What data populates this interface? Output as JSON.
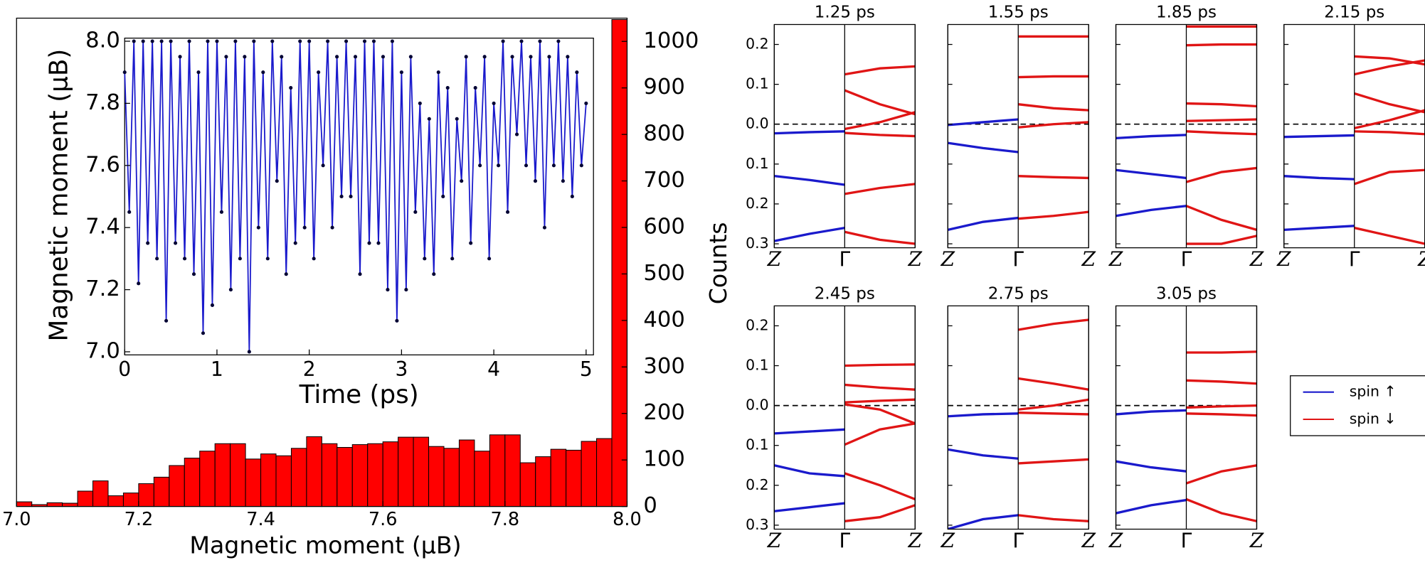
{
  "chart_data": [
    {
      "type": "histogram",
      "xlabel": "Magnetic moment (μB)",
      "ylabel": "Counts",
      "color": "#ff0000",
      "edge_color": "#000000",
      "bins": [
        7.0,
        7.025,
        7.05,
        7.075,
        7.1,
        7.125,
        7.15,
        7.175,
        7.2,
        7.225,
        7.25,
        7.275,
        7.3,
        7.325,
        7.35,
        7.375,
        7.4,
        7.425,
        7.45,
        7.475,
        7.5,
        7.525,
        7.55,
        7.575,
        7.6,
        7.625,
        7.65,
        7.675,
        7.7,
        7.725,
        7.75,
        7.775,
        7.8,
        7.825,
        7.85,
        7.875,
        7.9,
        7.925,
        7.95,
        7.975,
        8.0
      ],
      "values": [
        10,
        4,
        8,
        7,
        33,
        55,
        23,
        29,
        49,
        63,
        88,
        104,
        119,
        135,
        135,
        102,
        113,
        109,
        125,
        150,
        135,
        127,
        133,
        135,
        139,
        149,
        149,
        129,
        125,
        143,
        119,
        154,
        154,
        94,
        107,
        123,
        121,
        140,
        146,
        1047
      ],
      "xlim": [
        7.0,
        8.0
      ],
      "xticks": [
        {
          "value": 7.0,
          "label": "7.0"
        },
        7.2,
        7.4,
        7.6,
        7.8,
        {
          "value": 8.0,
          "label": "8.0"
        }
      ],
      "ylim": [
        0,
        1050
      ],
      "yticks": [
        0,
        100,
        200,
        300,
        400,
        500,
        600,
        700,
        800,
        900,
        1000
      ],
      "y_axis_side": "right"
    },
    {
      "type": "line",
      "xlabel": "Time (ps)",
      "ylabel": "Magnetic moment (μB)",
      "x": [
        0,
        0.05,
        0.1,
        0.15,
        0.2,
        0.25,
        0.3,
        0.35,
        0.4,
        0.45,
        0.5,
        0.55,
        0.6,
        0.65,
        0.7,
        0.75,
        0.8,
        0.85,
        0.9,
        0.95,
        1.0,
        1.05,
        1.1,
        1.15,
        1.2,
        1.25,
        1.3,
        1.35,
        1.4,
        1.45,
        1.5,
        1.55,
        1.6,
        1.65,
        1.7,
        1.75,
        1.8,
        1.85,
        1.9,
        1.95,
        2.0,
        2.05,
        2.1,
        2.15,
        2.2,
        2.25,
        2.3,
        2.35,
        2.4,
        2.45,
        2.5,
        2.55,
        2.6,
        2.65,
        2.7,
        2.75,
        2.8,
        2.85,
        2.9,
        2.95,
        3.0,
        3.05,
        3.1,
        3.15,
        3.2,
        3.25,
        3.3,
        3.35,
        3.4,
        3.45,
        3.5,
        3.55,
        3.6,
        3.65,
        3.7,
        3.75,
        3.8,
        3.85,
        3.9,
        3.95,
        4.0,
        4.05,
        4.1,
        4.15,
        4.2,
        4.25,
        4.3,
        4.35,
        4.4,
        4.45,
        4.5,
        4.55,
        4.6,
        4.65,
        4.7,
        4.75,
        4.8,
        4.85,
        4.9,
        4.95,
        5.0
      ],
      "series": [
        {
          "color": "#1a1acc",
          "marker_color": "#000033",
          "values": [
            7.9,
            7.45,
            8.0,
            7.22,
            8.0,
            7.35,
            8.0,
            7.3,
            8.0,
            7.1,
            8.0,
            7.35,
            7.95,
            7.3,
            8.0,
            7.25,
            7.9,
            7.06,
            8.0,
            7.15,
            8.0,
            7.45,
            7.95,
            7.2,
            8.0,
            7.3,
            7.95,
            7.0,
            8.0,
            7.4,
            7.9,
            7.3,
            8.0,
            7.55,
            7.95,
            7.25,
            7.85,
            7.35,
            8.0,
            7.4,
            8.0,
            7.3,
            7.9,
            7.6,
            8.0,
            7.4,
            7.95,
            7.5,
            8.0,
            7.5,
            7.95,
            7.25,
            8.0,
            7.35,
            8.0,
            7.35,
            7.95,
            7.2,
            8.0,
            7.1,
            7.9,
            7.2,
            7.95,
            7.45,
            7.8,
            7.3,
            7.75,
            7.25,
            7.9,
            7.5,
            7.85,
            7.3,
            7.75,
            7.55,
            7.95,
            7.35,
            7.85,
            7.6,
            7.95,
            7.3,
            7.8,
            7.6,
            8.0,
            7.45,
            7.95,
            7.7,
            8.0,
            7.6,
            7.95,
            7.55,
            8.0,
            7.4,
            7.95,
            7.6,
            8.0,
            7.55,
            7.95,
            7.5,
            7.9,
            7.6,
            7.8
          ]
        }
      ],
      "xlim": [
        0,
        5.08
      ],
      "xticks": [
        0,
        1,
        2,
        3,
        4,
        5
      ],
      "ylim": [
        6.99,
        8.01
      ],
      "yticks": [
        {
          "value": 7.0,
          "label": "7.0"
        },
        7.2,
        7.4,
        7.6,
        7.8,
        {
          "value": 8.0,
          "label": "8.0"
        }
      ]
    },
    {
      "type": "bands",
      "legend": "right",
      "series": [
        {
          "name": "spin ↑",
          "color": "#1a1acc",
          "x": [
            0,
            0.5,
            1
          ]
        },
        {
          "name": "spin ↓",
          "color": "#e01515",
          "x": [
            1,
            1.5,
            2
          ]
        }
      ],
      "xlim": [
        0,
        2
      ],
      "xticks": [
        {
          "value": 0,
          "label": "Z"
        },
        {
          "value": 1,
          "label": "Γ"
        },
        {
          "value": 2,
          "label": "Z"
        }
      ],
      "ylim": [
        -0.31,
        0.25
      ],
      "yticks": [
        0.2,
        0.1,
        {
          "value": 0,
          "label": "0.0"
        },
        {
          "value": -0.1,
          "label": "0.1"
        },
        {
          "value": -0.2,
          "label": "0.2"
        },
        {
          "value": -0.3,
          "label": "0.3"
        }
      ],
      "zero_line": 0,
      "panels": [
        {
          "title": "1.25 ps",
          "bands": [
            [
              [
                -0.023,
                -0.02,
                -0.018
              ],
              [
                -0.13,
                -0.14,
                -0.152
              ],
              [
                -0.293,
                -0.275,
                -0.26
              ]
            ],
            [
              [
                0.125,
                0.14,
                0.145
              ],
              [
                0.085,
                0.05,
                0.025
              ],
              [
                -0.012,
                0.005,
                0.03
              ],
              [
                -0.022,
                -0.027,
                -0.03
              ],
              [
                -0.175,
                -0.16,
                -0.15
              ],
              [
                -0.27,
                -0.29,
                -0.3
              ]
            ]
          ]
        },
        {
          "title": "1.55 ps",
          "bands": [
            [
              [
                -0.002,
                0.005,
                0.012
              ],
              [
                -0.047,
                -0.06,
                -0.07
              ],
              [
                -0.265,
                -0.245,
                -0.235
              ]
            ],
            [
              [
                0.22,
                0.22,
                0.22
              ],
              [
                0.118,
                0.12,
                0.12
              ],
              [
                0.05,
                0.04,
                0.035
              ],
              [
                -0.008,
                0.0,
                0.005
              ],
              [
                -0.13,
                -0.133,
                -0.135
              ],
              [
                -0.237,
                -0.23,
                -0.22
              ]
            ]
          ]
        },
        {
          "title": "1.85 ps",
          "bands": [
            [
              [
                -0.035,
                -0.03,
                -0.027
              ],
              [
                -0.115,
                -0.125,
                -0.135
              ],
              [
                -0.23,
                -0.215,
                -0.205
              ]
            ],
            [
              [
                0.245,
                0.245,
                0.245
              ],
              [
                0.198,
                0.2,
                0.2
              ],
              [
                0.052,
                0.05,
                0.045
              ],
              [
                0.008,
                0.01,
                0.012
              ],
              [
                -0.018,
                -0.022,
                -0.025
              ],
              [
                -0.145,
                -0.12,
                -0.11
              ],
              [
                -0.205,
                -0.24,
                -0.265
              ],
              [
                -0.3,
                -0.3,
                -0.28
              ]
            ]
          ]
        },
        {
          "title": "2.15 ps",
          "bands": [
            [
              [
                -0.032,
                -0.03,
                -0.028
              ],
              [
                -0.13,
                -0.135,
                -0.138
              ],
              [
                -0.265,
                -0.26,
                -0.255
              ]
            ],
            [
              [
                0.17,
                0.165,
                0.15
              ],
              [
                0.125,
                0.145,
                0.16
              ],
              [
                0.077,
                0.05,
                0.03
              ],
              [
                -0.01,
                0.01,
                0.035
              ],
              [
                -0.018,
                -0.02,
                -0.025
              ],
              [
                -0.15,
                -0.12,
                -0.115
              ],
              [
                -0.26,
                -0.28,
                -0.3
              ]
            ]
          ]
        },
        {
          "title": "2.45 ps",
          "bands": [
            [
              [
                -0.07,
                -0.065,
                -0.06
              ],
              [
                -0.15,
                -0.17,
                -0.177
              ],
              [
                -0.265,
                -0.255,
                -0.245
              ]
            ],
            [
              [
                0.1,
                0.102,
                0.103
              ],
              [
                0.052,
                0.045,
                0.04
              ],
              [
                0.008,
                0.012,
                0.015
              ],
              [
                0.003,
                -0.01,
                -0.045
              ],
              [
                -0.098,
                -0.06,
                -0.045
              ],
              [
                -0.17,
                -0.2,
                -0.235
              ],
              [
                -0.29,
                -0.28,
                -0.25
              ]
            ]
          ]
        },
        {
          "title": "2.75 ps",
          "bands": [
            [
              [
                -0.027,
                -0.022,
                -0.02
              ],
              [
                -0.11,
                -0.125,
                -0.133
              ],
              [
                -0.31,
                -0.285,
                -0.275
              ]
            ],
            [
              [
                0.19,
                0.205,
                0.215
              ],
              [
                0.068,
                0.055,
                0.04
              ],
              [
                -0.01,
                0.0,
                0.015
              ],
              [
                -0.018,
                -0.02,
                -0.022
              ],
              [
                -0.145,
                -0.14,
                -0.135
              ],
              [
                -0.275,
                -0.285,
                -0.29
              ]
            ]
          ]
        },
        {
          "title": "3.05 ps",
          "bands": [
            [
              [
                -0.022,
                -0.015,
                -0.012
              ],
              [
                -0.14,
                -0.155,
                -0.165
              ],
              [
                -0.27,
                -0.25,
                -0.237
              ]
            ],
            [
              [
                0.133,
                0.133,
                0.135
              ],
              [
                0.063,
                0.06,
                0.055
              ],
              [
                -0.005,
                -0.002,
                0.0
              ],
              [
                -0.02,
                -0.022,
                -0.025
              ],
              [
                -0.195,
                -0.165,
                -0.15
              ],
              [
                -0.235,
                -0.27,
                -0.29
              ]
            ]
          ]
        }
      ]
    }
  ]
}
